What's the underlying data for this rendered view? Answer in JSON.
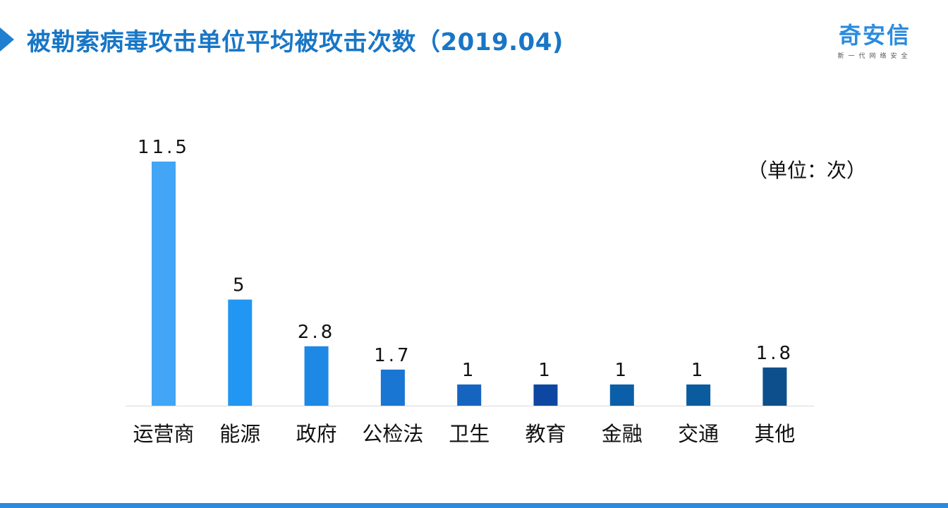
{
  "header": {
    "title": "被勒索病毒攻击单位平均被攻击次数（2019.04)",
    "logo_text": "奇安信",
    "logo_subtitle": "新一代网络安全",
    "unit_label": "（单位：次）"
  },
  "colors": {
    "title": "#1876c6",
    "accent": "#2a8be0",
    "bars": [
      "#42a5f5",
      "#2196f3",
      "#1e88e5",
      "#1976d2",
      "#1565c0",
      "#0d47a1",
      "#0a5fa8",
      "#0a5c9e",
      "#0d4f8c"
    ]
  },
  "chart_data": {
    "type": "bar",
    "categories": [
      "运营商",
      "能源",
      "政府",
      "公检法",
      "卫生",
      "教育",
      "金融",
      "交通",
      "其他"
    ],
    "values": [
      11.5,
      5,
      2.8,
      1.7,
      1,
      1,
      1,
      1,
      1.8
    ],
    "value_labels": [
      "11.5",
      "5",
      "2.8",
      "1.7",
      "1",
      "1",
      "1",
      "1",
      "1.8"
    ],
    "title": "被勒索病毒攻击单位平均被攻击次数（2019.04)",
    "xlabel": "",
    "ylabel": "",
    "ylim": [
      0,
      11.5
    ],
    "grid": false,
    "legend": "none"
  }
}
